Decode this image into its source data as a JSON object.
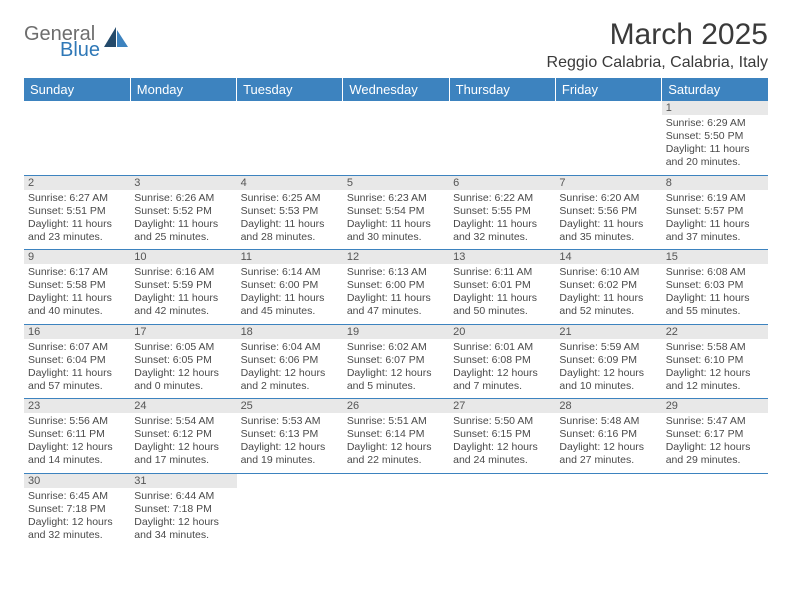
{
  "logo": {
    "general": "General",
    "blue": "Blue"
  },
  "title": "March 2025",
  "location": "Reggio Calabria, Calabria, Italy",
  "colors": {
    "header_bg": "#3d83bf",
    "header_text": "#ffffff",
    "daynum_bg": "#e8e8e8",
    "border": "#3d83bf",
    "text": "#4a4a4a",
    "logo_gray": "#6d6d6d",
    "logo_blue": "#2f78b7"
  },
  "weekdays": [
    "Sunday",
    "Monday",
    "Tuesday",
    "Wednesday",
    "Thursday",
    "Friday",
    "Saturday"
  ],
  "weeks": [
    [
      null,
      null,
      null,
      null,
      null,
      null,
      {
        "n": "1",
        "sr": "Sunrise: 6:29 AM",
        "ss": "Sunset: 5:50 PM",
        "dl": "Daylight: 11 hours and 20 minutes."
      }
    ],
    [
      {
        "n": "2",
        "sr": "Sunrise: 6:27 AM",
        "ss": "Sunset: 5:51 PM",
        "dl": "Daylight: 11 hours and 23 minutes."
      },
      {
        "n": "3",
        "sr": "Sunrise: 6:26 AM",
        "ss": "Sunset: 5:52 PM",
        "dl": "Daylight: 11 hours and 25 minutes."
      },
      {
        "n": "4",
        "sr": "Sunrise: 6:25 AM",
        "ss": "Sunset: 5:53 PM",
        "dl": "Daylight: 11 hours and 28 minutes."
      },
      {
        "n": "5",
        "sr": "Sunrise: 6:23 AM",
        "ss": "Sunset: 5:54 PM",
        "dl": "Daylight: 11 hours and 30 minutes."
      },
      {
        "n": "6",
        "sr": "Sunrise: 6:22 AM",
        "ss": "Sunset: 5:55 PM",
        "dl": "Daylight: 11 hours and 32 minutes."
      },
      {
        "n": "7",
        "sr": "Sunrise: 6:20 AM",
        "ss": "Sunset: 5:56 PM",
        "dl": "Daylight: 11 hours and 35 minutes."
      },
      {
        "n": "8",
        "sr": "Sunrise: 6:19 AM",
        "ss": "Sunset: 5:57 PM",
        "dl": "Daylight: 11 hours and 37 minutes."
      }
    ],
    [
      {
        "n": "9",
        "sr": "Sunrise: 6:17 AM",
        "ss": "Sunset: 5:58 PM",
        "dl": "Daylight: 11 hours and 40 minutes."
      },
      {
        "n": "10",
        "sr": "Sunrise: 6:16 AM",
        "ss": "Sunset: 5:59 PM",
        "dl": "Daylight: 11 hours and 42 minutes."
      },
      {
        "n": "11",
        "sr": "Sunrise: 6:14 AM",
        "ss": "Sunset: 6:00 PM",
        "dl": "Daylight: 11 hours and 45 minutes."
      },
      {
        "n": "12",
        "sr": "Sunrise: 6:13 AM",
        "ss": "Sunset: 6:00 PM",
        "dl": "Daylight: 11 hours and 47 minutes."
      },
      {
        "n": "13",
        "sr": "Sunrise: 6:11 AM",
        "ss": "Sunset: 6:01 PM",
        "dl": "Daylight: 11 hours and 50 minutes."
      },
      {
        "n": "14",
        "sr": "Sunrise: 6:10 AM",
        "ss": "Sunset: 6:02 PM",
        "dl": "Daylight: 11 hours and 52 minutes."
      },
      {
        "n": "15",
        "sr": "Sunrise: 6:08 AM",
        "ss": "Sunset: 6:03 PM",
        "dl": "Daylight: 11 hours and 55 minutes."
      }
    ],
    [
      {
        "n": "16",
        "sr": "Sunrise: 6:07 AM",
        "ss": "Sunset: 6:04 PM",
        "dl": "Daylight: 11 hours and 57 minutes."
      },
      {
        "n": "17",
        "sr": "Sunrise: 6:05 AM",
        "ss": "Sunset: 6:05 PM",
        "dl": "Daylight: 12 hours and 0 minutes."
      },
      {
        "n": "18",
        "sr": "Sunrise: 6:04 AM",
        "ss": "Sunset: 6:06 PM",
        "dl": "Daylight: 12 hours and 2 minutes."
      },
      {
        "n": "19",
        "sr": "Sunrise: 6:02 AM",
        "ss": "Sunset: 6:07 PM",
        "dl": "Daylight: 12 hours and 5 minutes."
      },
      {
        "n": "20",
        "sr": "Sunrise: 6:01 AM",
        "ss": "Sunset: 6:08 PM",
        "dl": "Daylight: 12 hours and 7 minutes."
      },
      {
        "n": "21",
        "sr": "Sunrise: 5:59 AM",
        "ss": "Sunset: 6:09 PM",
        "dl": "Daylight: 12 hours and 10 minutes."
      },
      {
        "n": "22",
        "sr": "Sunrise: 5:58 AM",
        "ss": "Sunset: 6:10 PM",
        "dl": "Daylight: 12 hours and 12 minutes."
      }
    ],
    [
      {
        "n": "23",
        "sr": "Sunrise: 5:56 AM",
        "ss": "Sunset: 6:11 PM",
        "dl": "Daylight: 12 hours and 14 minutes."
      },
      {
        "n": "24",
        "sr": "Sunrise: 5:54 AM",
        "ss": "Sunset: 6:12 PM",
        "dl": "Daylight: 12 hours and 17 minutes."
      },
      {
        "n": "25",
        "sr": "Sunrise: 5:53 AM",
        "ss": "Sunset: 6:13 PM",
        "dl": "Daylight: 12 hours and 19 minutes."
      },
      {
        "n": "26",
        "sr": "Sunrise: 5:51 AM",
        "ss": "Sunset: 6:14 PM",
        "dl": "Daylight: 12 hours and 22 minutes."
      },
      {
        "n": "27",
        "sr": "Sunrise: 5:50 AM",
        "ss": "Sunset: 6:15 PM",
        "dl": "Daylight: 12 hours and 24 minutes."
      },
      {
        "n": "28",
        "sr": "Sunrise: 5:48 AM",
        "ss": "Sunset: 6:16 PM",
        "dl": "Daylight: 12 hours and 27 minutes."
      },
      {
        "n": "29",
        "sr": "Sunrise: 5:47 AM",
        "ss": "Sunset: 6:17 PM",
        "dl": "Daylight: 12 hours and 29 minutes."
      }
    ],
    [
      {
        "n": "30",
        "sr": "Sunrise: 6:45 AM",
        "ss": "Sunset: 7:18 PM",
        "dl": "Daylight: 12 hours and 32 minutes."
      },
      {
        "n": "31",
        "sr": "Sunrise: 6:44 AM",
        "ss": "Sunset: 7:18 PM",
        "dl": "Daylight: 12 hours and 34 minutes."
      },
      null,
      null,
      null,
      null,
      null
    ]
  ]
}
